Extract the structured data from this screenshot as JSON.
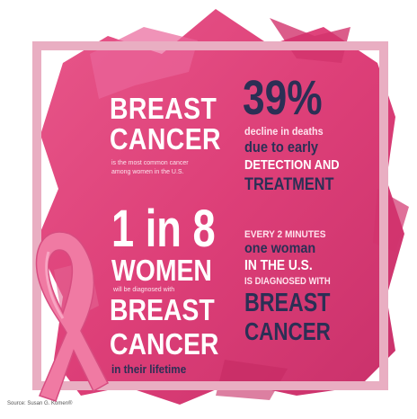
{
  "colors": {
    "frame": "#e9aec2",
    "brush": "#dd3f78",
    "brush_dark": "#c22a63",
    "heading_white": "#ffffff",
    "heading_navy": "#2b2f55",
    "ribbon": "#ef6f9c"
  },
  "left_column": {
    "breast_line1": "BREAST",
    "cancer_line1": "CANCER",
    "most_common_line1": "is the most common cancer",
    "most_common_line2": "among women in the U.S.",
    "one_in_eight": "1 in 8",
    "women": "WOMEN",
    "diagnosed_with": "will be diagnosed with",
    "breast_line2": "BREAST",
    "cancer_line2": "CANCER",
    "lifetime": "in their lifetime"
  },
  "right_column": {
    "percent": "39%",
    "decline": "decline in deaths",
    "due_to": "due to early",
    "detection": "DETECTION AND",
    "treatment": "TREATMENT",
    "every_two_minutes": "EVERY 2 MINUTES",
    "one_woman": "one woman",
    "in_us": "IN THE U.S.",
    "is_diagnosed": "IS DIAGNOSED WITH",
    "breast": "BREAST",
    "cancer": "CANCER"
  },
  "footer": {
    "source": "Source: Susan G. Komen®"
  },
  "icons": {
    "ribbon": "pink-awareness-ribbon-icon"
  }
}
